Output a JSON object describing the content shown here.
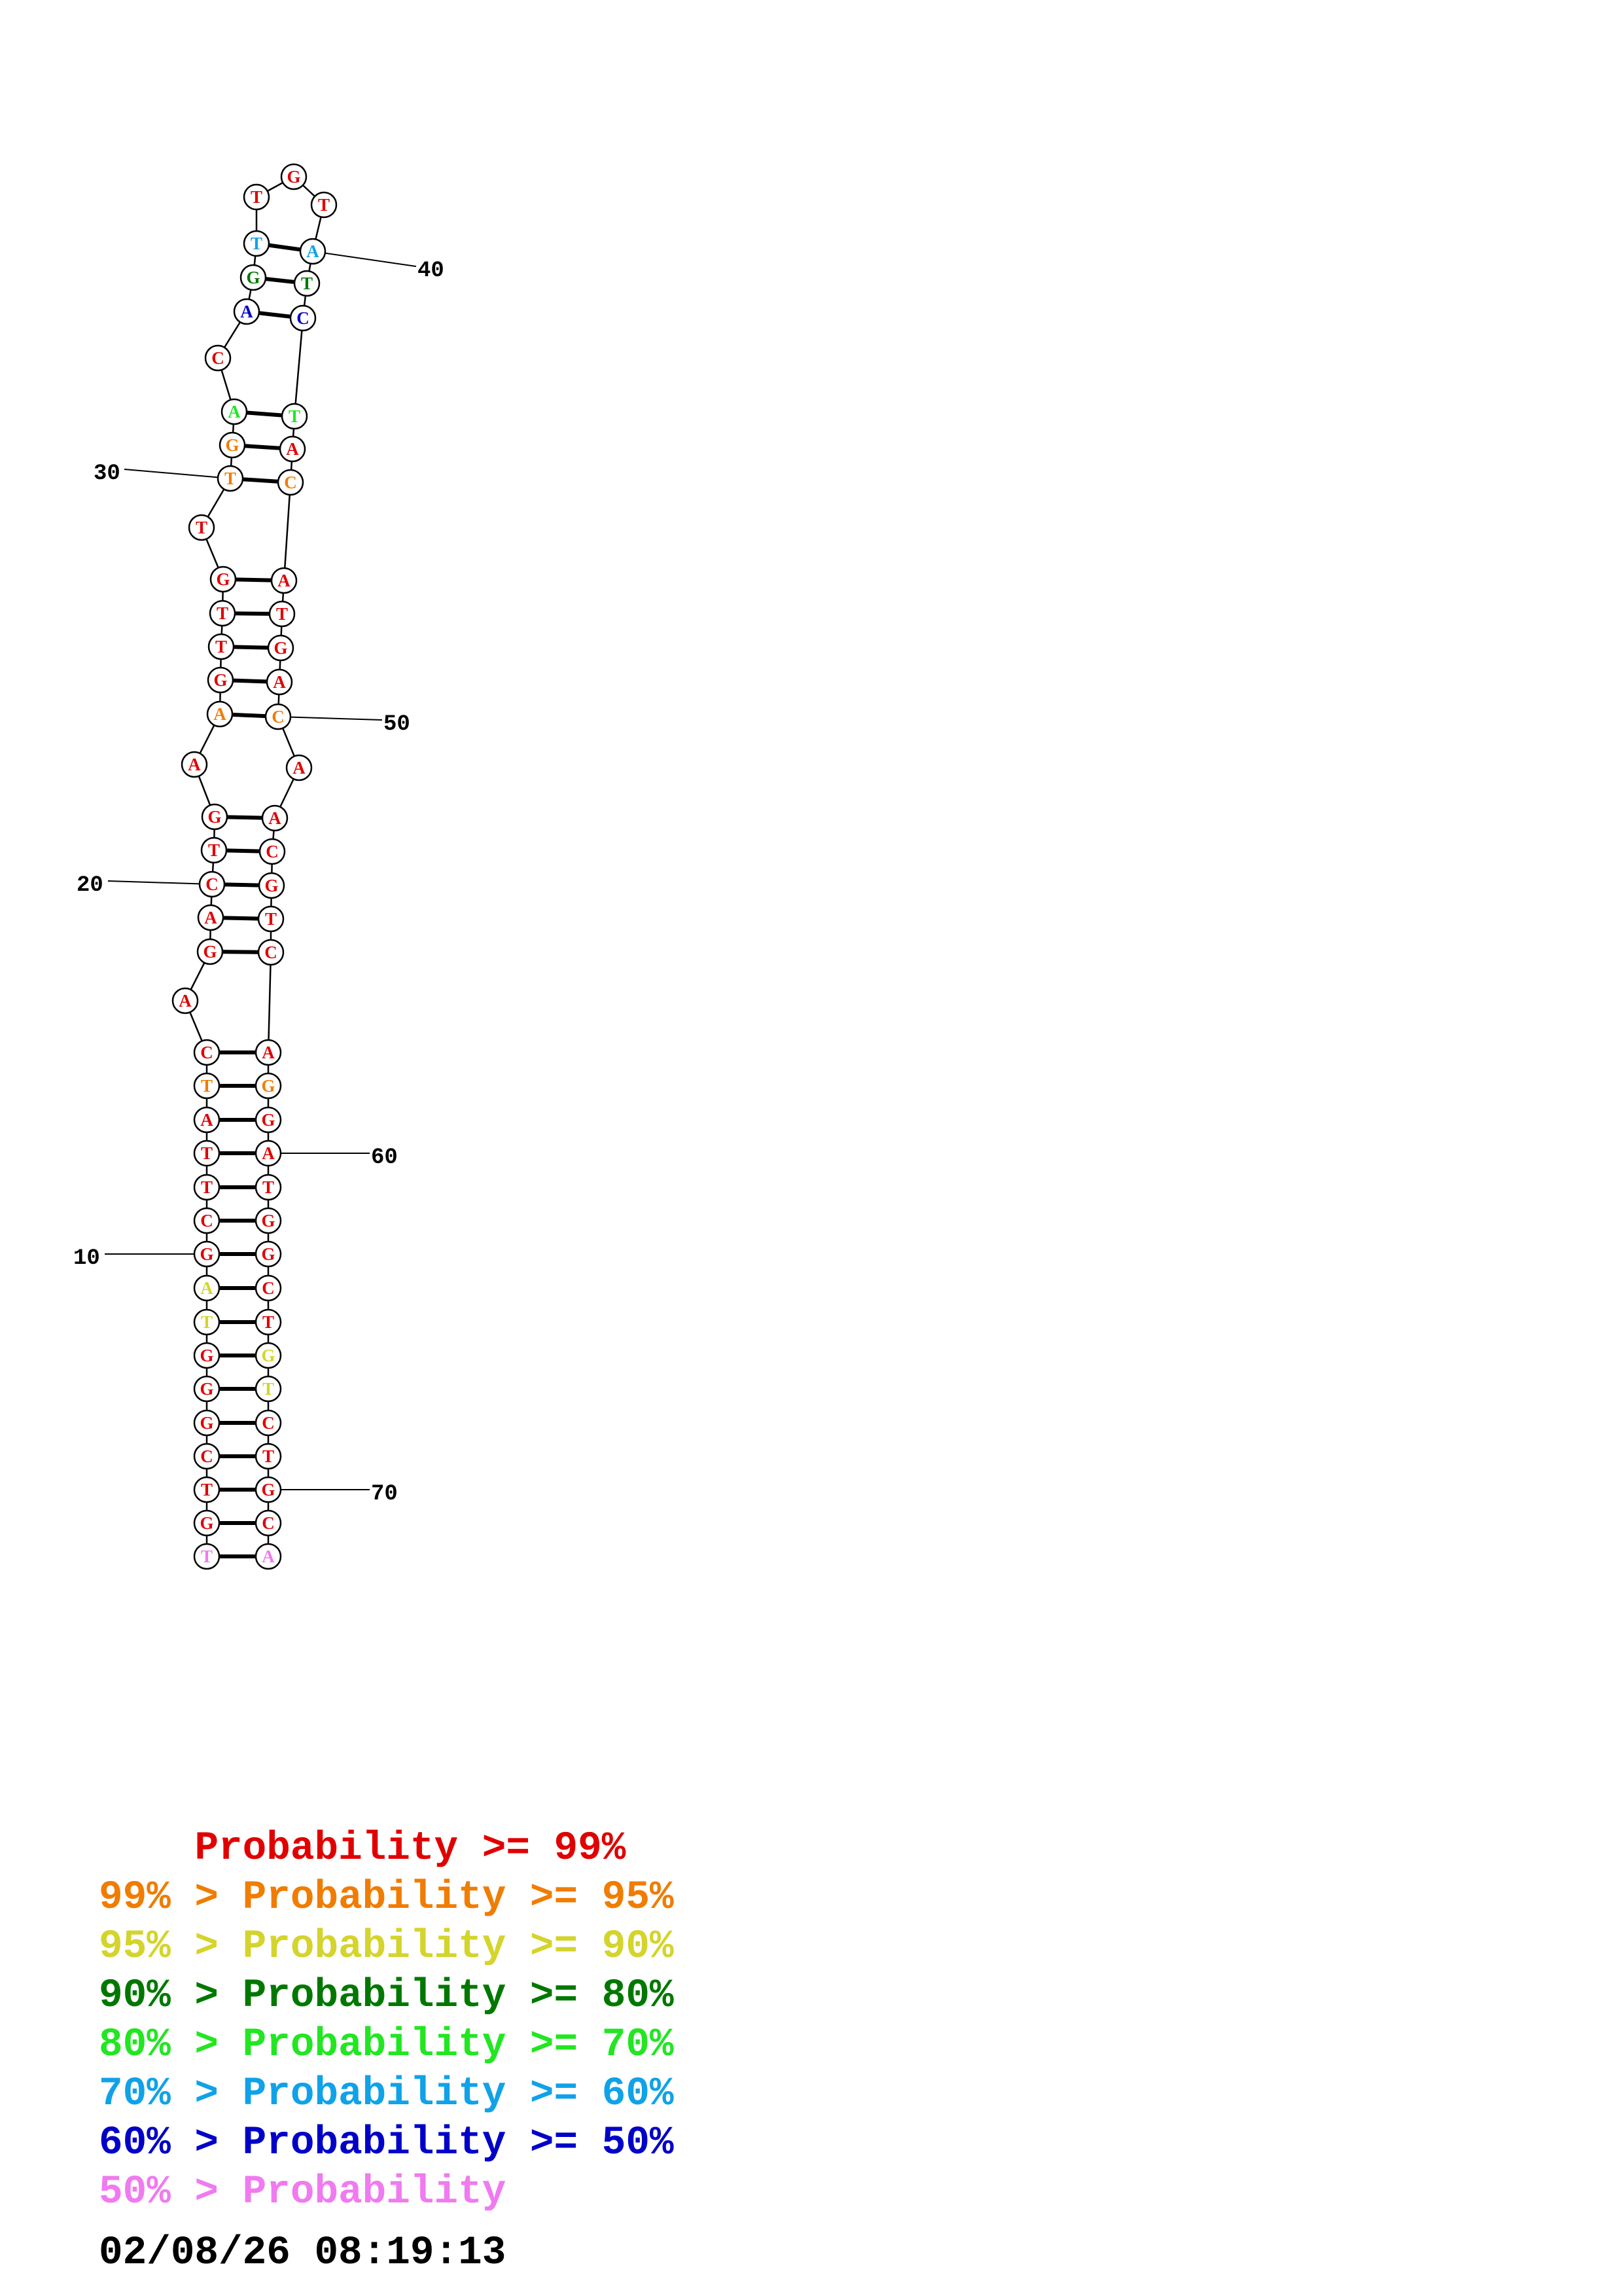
{
  "structure": {
    "sequence": "TGTCGGGTAGCTTATCAGACTGAAGTTGTTGACAGTTGTATCTACATGACAACGTCAGGATGGCTGTCTGCA",
    "pairs": [
      [
        1,
        72
      ],
      [
        2,
        71
      ],
      [
        3,
        70
      ],
      [
        4,
        69
      ],
      [
        5,
        68
      ],
      [
        6,
        67
      ],
      [
        7,
        66
      ],
      [
        8,
        65
      ],
      [
        9,
        64
      ],
      [
        10,
        63
      ],
      [
        11,
        62
      ],
      [
        12,
        61
      ],
      [
        13,
        60
      ],
      [
        14,
        59
      ],
      [
        15,
        58
      ],
      [
        16,
        57
      ],
      [
        18,
        56
      ],
      [
        19,
        55
      ],
      [
        20,
        54
      ],
      [
        21,
        53
      ],
      [
        22,
        52
      ],
      [
        24,
        50
      ],
      [
        25,
        49
      ],
      [
        26,
        48
      ],
      [
        27,
        47
      ],
      [
        28,
        46
      ],
      [
        30,
        45
      ],
      [
        31,
        44
      ],
      [
        32,
        43
      ],
      [
        34,
        42
      ],
      [
        35,
        41
      ],
      [
        36,
        40
      ]
    ],
    "probability_class": [
      7,
      0,
      0,
      0,
      0,
      0,
      0,
      2,
      2,
      0,
      0,
      0,
      0,
      0,
      1,
      0,
      0,
      0,
      0,
      0,
      0,
      0,
      0,
      1,
      0,
      0,
      0,
      0,
      0,
      1,
      1,
      4,
      0,
      6,
      3,
      5,
      0,
      0,
      0,
      5,
      3,
      6,
      4,
      0,
      1,
      0,
      0,
      0,
      0,
      1,
      0,
      0,
      0,
      0,
      0,
      0,
      0,
      1,
      0,
      0,
      0,
      0,
      0,
      0,
      0,
      2,
      2,
      0,
      0,
      0,
      0,
      7
    ],
    "number_labels": [
      {
        "text": "10",
        "index": 10
      },
      {
        "text": "20",
        "index": 20
      },
      {
        "text": "30",
        "index": 30
      },
      {
        "text": "40",
        "index": 40
      },
      {
        "text": "50",
        "index": 50
      },
      {
        "text": "60",
        "index": 60
      },
      {
        "text": "70",
        "index": 70
      }
    ]
  },
  "colors": [
    "#e00000",
    "#f07c00",
    "#d4d42c",
    "#007800",
    "#22e622",
    "#10a2e8",
    "#0000c8",
    "#f07af0"
  ],
  "legend": [
    {
      "prefix": "    ",
      "label": "Probability >= 99%"
    },
    {
      "prefix": "99% > ",
      "label": "Probability >= 95%"
    },
    {
      "prefix": "95% > ",
      "label": "Probability >= 90%"
    },
    {
      "prefix": "90% > ",
      "label": "Probability >= 80%"
    },
    {
      "prefix": "80% > ",
      "label": "Probability >= 70%"
    },
    {
      "prefix": "70% > ",
      "label": "Probability >= 60%"
    },
    {
      "prefix": "60% > ",
      "label": "Probability >= 50%"
    },
    {
      "prefix": "50% > ",
      "label": "Probability"
    }
  ],
  "timestamp": "02/08/26 08:19:13"
}
